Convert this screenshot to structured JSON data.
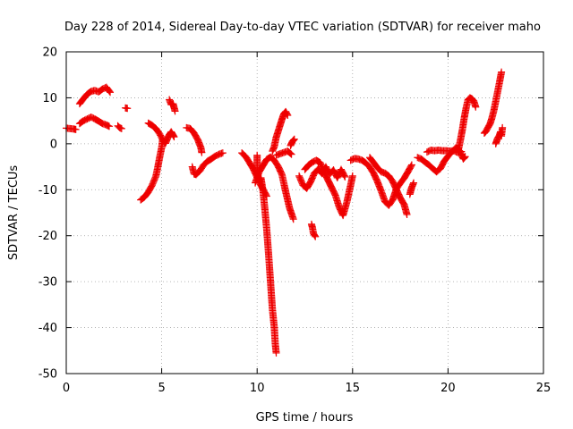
{
  "chart_data": {
    "type": "scatter",
    "title": "Day 228 of 2014, Sidereal Day-to-day VTEC variation (SDTVAR) for receiver maho",
    "xlabel": "GPS time / hours",
    "ylabel": "SDTVAR / TECUs",
    "xlim": [
      0,
      25
    ],
    "ylim": [
      -50,
      20
    ],
    "xticks": [
      0,
      5,
      10,
      15,
      20,
      25
    ],
    "yticks": [
      -50,
      -40,
      -30,
      -20,
      -10,
      0,
      10,
      20
    ],
    "xtick_labels": [
      "0",
      "5",
      "10",
      "15",
      "20",
      "25"
    ],
    "ytick_labels": [
      "-50",
      "-40",
      "-30",
      "-20",
      "-10",
      "0",
      "10",
      "20"
    ],
    "grid": true,
    "marker": "+",
    "color": "#ee0000",
    "tracks": [
      {
        "name": "t1",
        "points": [
          [
            0.0,
            3.4
          ],
          [
            0.2,
            3.3
          ],
          [
            0.4,
            3.2
          ],
          [
            0.5,
            3.1
          ]
        ]
      },
      {
        "name": "t2",
        "points": [
          [
            0.7,
            8.7
          ],
          [
            0.9,
            9.8
          ],
          [
            1.1,
            10.8
          ],
          [
            1.3,
            11.4
          ],
          [
            1.5,
            11.6
          ],
          [
            1.7,
            11.3
          ],
          [
            1.9,
            11.9
          ],
          [
            2.1,
            12.3
          ],
          [
            2.3,
            11.2
          ]
        ]
      },
      {
        "name": "t3",
        "points": [
          [
            0.7,
            4.4
          ],
          [
            0.9,
            5.0
          ],
          [
            1.1,
            5.4
          ],
          [
            1.3,
            5.8
          ],
          [
            1.5,
            5.4
          ],
          [
            1.7,
            4.9
          ],
          [
            1.9,
            4.4
          ],
          [
            2.1,
            4.1
          ],
          [
            2.25,
            3.8
          ]
        ]
      },
      {
        "name": "t4",
        "points": [
          [
            2.7,
            3.9
          ],
          [
            2.8,
            3.5
          ],
          [
            2.9,
            3.3
          ]
        ]
      },
      {
        "name": "t5",
        "points": [
          [
            3.1,
            7.8
          ],
          [
            3.2,
            7.7
          ]
        ]
      },
      {
        "name": "t6",
        "points": [
          [
            3.9,
            -12.2
          ],
          [
            4.1,
            -11.6
          ],
          [
            4.3,
            -10.5
          ],
          [
            4.5,
            -9.0
          ],
          [
            4.7,
            -7.0
          ],
          [
            4.8,
            -5.0
          ],
          [
            4.9,
            -2.8
          ],
          [
            5.0,
            -0.8
          ],
          [
            5.05,
            1.0
          ]
        ]
      },
      {
        "name": "t7",
        "points": [
          [
            4.3,
            4.5
          ],
          [
            4.5,
            4.0
          ],
          [
            4.7,
            3.3
          ],
          [
            4.9,
            2.1
          ],
          [
            5.1,
            0.5
          ],
          [
            5.2,
            0.1
          ],
          [
            5.3,
            1.1
          ],
          [
            5.4,
            2.0
          ],
          [
            5.5,
            2.6
          ],
          [
            5.65,
            1.5
          ]
        ]
      },
      {
        "name": "t8",
        "points": [
          [
            5.4,
            9.6
          ],
          [
            5.5,
            8.5
          ],
          [
            5.6,
            8.7
          ],
          [
            5.7,
            7.1
          ]
        ]
      },
      {
        "name": "t9",
        "points": [
          [
            6.3,
            3.5
          ],
          [
            6.5,
            3.3
          ],
          [
            6.7,
            2.3
          ],
          [
            6.9,
            0.8
          ],
          [
            7.05,
            -0.8
          ],
          [
            7.1,
            -1.9
          ]
        ]
      },
      {
        "name": "t10",
        "points": [
          [
            6.6,
            -5.0
          ],
          [
            6.7,
            -6.6
          ],
          [
            6.8,
            -6.7
          ],
          [
            7.0,
            -5.9
          ],
          [
            7.2,
            -4.6
          ],
          [
            7.4,
            -3.8
          ],
          [
            7.6,
            -3.3
          ],
          [
            7.8,
            -2.7
          ],
          [
            8.0,
            -2.3
          ],
          [
            8.2,
            -2.0
          ]
        ]
      },
      {
        "name": "t11",
        "points": [
          [
            9.2,
            -2.0
          ],
          [
            9.4,
            -2.8
          ],
          [
            9.6,
            -4.1
          ],
          [
            9.8,
            -5.5
          ],
          [
            10.0,
            -7.3
          ],
          [
            10.2,
            -9.1
          ],
          [
            10.4,
            -10.6
          ],
          [
            10.5,
            -11.4
          ]
        ]
      },
      {
        "name": "t12",
        "points": [
          [
            9.9,
            -8.5
          ],
          [
            10.1,
            -6.2
          ],
          [
            10.3,
            -4.8
          ],
          [
            10.5,
            -3.4
          ],
          [
            10.7,
            -2.9
          ],
          [
            10.9,
            -3.6
          ],
          [
            11.1,
            -4.9
          ],
          [
            11.3,
            -6.7
          ],
          [
            11.5,
            -10.5
          ],
          [
            11.7,
            -14.0
          ],
          [
            11.9,
            -16.4
          ]
        ]
      },
      {
        "name": "t13",
        "points": [
          [
            10.0,
            -2.5
          ],
          [
            10.0,
            -6.0
          ],
          [
            10.1,
            -8.5
          ],
          [
            10.2,
            -7.4
          ],
          [
            10.3,
            -10.0
          ],
          [
            10.4,
            -14.0
          ],
          [
            10.5,
            -18.5
          ],
          [
            10.6,
            -24.0
          ],
          [
            10.7,
            -30.0
          ],
          [
            10.8,
            -36.0
          ],
          [
            10.9,
            -40.0
          ],
          [
            10.95,
            -43.5
          ],
          [
            11.0,
            -45.5
          ]
        ]
      },
      {
        "name": "t14",
        "points": [
          [
            10.8,
            -1.6
          ],
          [
            10.9,
            -0.6
          ],
          [
            11.0,
            1.4
          ],
          [
            11.1,
            2.7
          ],
          [
            11.2,
            4.0
          ],
          [
            11.3,
            5.3
          ],
          [
            11.4,
            6.5
          ],
          [
            11.5,
            7.0
          ],
          [
            11.6,
            6.2
          ]
        ]
      },
      {
        "name": "t15",
        "points": [
          [
            11.0,
            -2.5
          ],
          [
            11.2,
            -2.2
          ],
          [
            11.4,
            -1.9
          ],
          [
            11.6,
            -1.6
          ],
          [
            11.8,
            -2.3
          ]
        ]
      },
      {
        "name": "t16",
        "points": [
          [
            11.75,
            -0.4
          ],
          [
            11.85,
            0.5
          ],
          [
            11.95,
            1.0
          ]
        ]
      },
      {
        "name": "t17",
        "points": [
          [
            12.2,
            -7.0
          ],
          [
            12.4,
            -9.0
          ],
          [
            12.6,
            -9.7
          ],
          [
            12.8,
            -8.3
          ],
          [
            13.0,
            -6.4
          ],
          [
            13.2,
            -5.5
          ],
          [
            13.4,
            -6.5
          ],
          [
            13.6,
            -5.0
          ],
          [
            13.8,
            -6.6
          ],
          [
            14.0,
            -5.7
          ],
          [
            14.2,
            -7.4
          ],
          [
            14.4,
            -5.6
          ],
          [
            14.6,
            -7.2
          ]
        ]
      },
      {
        "name": "t18",
        "points": [
          [
            12.5,
            -5.6
          ],
          [
            12.7,
            -4.6
          ],
          [
            12.9,
            -4.0
          ],
          [
            13.1,
            -3.6
          ],
          [
            13.3,
            -4.1
          ],
          [
            13.5,
            -6.1
          ],
          [
            13.7,
            -7.8
          ],
          [
            13.9,
            -9.5
          ],
          [
            14.1,
            -11.2
          ],
          [
            14.3,
            -13.8
          ],
          [
            14.5,
            -15.6
          ],
          [
            14.7,
            -12.7
          ],
          [
            14.9,
            -9.0
          ],
          [
            15.0,
            -7.0
          ]
        ]
      },
      {
        "name": "t19",
        "points": [
          [
            12.85,
            -17.5
          ],
          [
            12.9,
            -18.3
          ],
          [
            12.95,
            -19.5
          ],
          [
            13.05,
            -20.2
          ]
        ]
      },
      {
        "name": "t20",
        "points": [
          [
            14.9,
            -3.6
          ],
          [
            15.1,
            -3.2
          ],
          [
            15.3,
            -3.3
          ],
          [
            15.5,
            -3.6
          ],
          [
            15.7,
            -4.2
          ],
          [
            15.9,
            -5.1
          ],
          [
            16.1,
            -6.4
          ],
          [
            16.3,
            -8.2
          ],
          [
            16.5,
            -10.3
          ],
          [
            16.7,
            -12.6
          ],
          [
            16.9,
            -13.4
          ],
          [
            17.1,
            -12.2
          ],
          [
            17.3,
            -9.8
          ],
          [
            17.5,
            -8.6
          ],
          [
            17.7,
            -7.5
          ],
          [
            17.9,
            -6.1
          ],
          [
            18.1,
            -4.6
          ]
        ]
      },
      {
        "name": "t21",
        "points": [
          [
            15.9,
            -3.0
          ],
          [
            16.1,
            -4.1
          ],
          [
            16.3,
            -5.2
          ],
          [
            16.5,
            -6.1
          ],
          [
            16.7,
            -6.4
          ],
          [
            16.9,
            -7.0
          ],
          [
            17.1,
            -8.2
          ],
          [
            17.3,
            -10.0
          ],
          [
            17.5,
            -11.8
          ],
          [
            17.7,
            -13.2
          ],
          [
            17.85,
            -15.4
          ]
        ]
      },
      {
        "name": "t22",
        "points": [
          [
            18.0,
            -11.0
          ],
          [
            18.1,
            -9.5
          ],
          [
            18.2,
            -8.5
          ]
        ]
      },
      {
        "name": "t23",
        "points": [
          [
            18.4,
            -3.0
          ],
          [
            18.6,
            -3.3
          ],
          [
            18.8,
            -4.0
          ],
          [
            19.0,
            -4.6
          ],
          [
            19.2,
            -5.4
          ],
          [
            19.4,
            -6.1
          ],
          [
            19.6,
            -5.4
          ],
          [
            19.8,
            -3.8
          ],
          [
            20.0,
            -2.7
          ],
          [
            20.2,
            -1.8
          ],
          [
            20.4,
            -0.9
          ],
          [
            20.6,
            -1.5
          ],
          [
            20.8,
            -3.3
          ],
          [
            20.9,
            -2.8
          ]
        ]
      },
      {
        "name": "t24",
        "points": [
          [
            18.9,
            -1.8
          ],
          [
            19.1,
            -1.4
          ],
          [
            19.3,
            -1.5
          ],
          [
            19.5,
            -1.4
          ],
          [
            19.7,
            -1.5
          ],
          [
            19.9,
            -1.5
          ],
          [
            20.1,
            -1.6
          ],
          [
            20.3,
            -1.5
          ],
          [
            20.5,
            -1.9
          ],
          [
            20.7,
            -1.7
          ]
        ]
      },
      {
        "name": "t25",
        "points": [
          [
            20.55,
            -1.2
          ],
          [
            20.65,
            0.8
          ],
          [
            20.75,
            3.0
          ],
          [
            20.85,
            5.6
          ],
          [
            20.95,
            7.8
          ],
          [
            21.05,
            9.6
          ],
          [
            21.15,
            10.0
          ],
          [
            21.25,
            9.8
          ],
          [
            21.35,
            9.3
          ],
          [
            21.45,
            8.0
          ]
        ]
      },
      {
        "name": "t26",
        "points": [
          [
            21.9,
            2.3
          ],
          [
            22.0,
            2.8
          ],
          [
            22.1,
            3.6
          ],
          [
            22.2,
            4.3
          ],
          [
            22.3,
            5.6
          ],
          [
            22.4,
            7.2
          ],
          [
            22.5,
            9.2
          ],
          [
            22.6,
            11.3
          ],
          [
            22.7,
            13.4
          ],
          [
            22.8,
            15.6
          ]
        ]
      },
      {
        "name": "t27",
        "points": [
          [
            22.5,
            0.0
          ],
          [
            22.6,
            1.2
          ],
          [
            22.7,
            1.9
          ],
          [
            22.75,
            2.6
          ],
          [
            22.8,
            1.7
          ],
          [
            22.85,
            3.5
          ]
        ]
      }
    ]
  }
}
